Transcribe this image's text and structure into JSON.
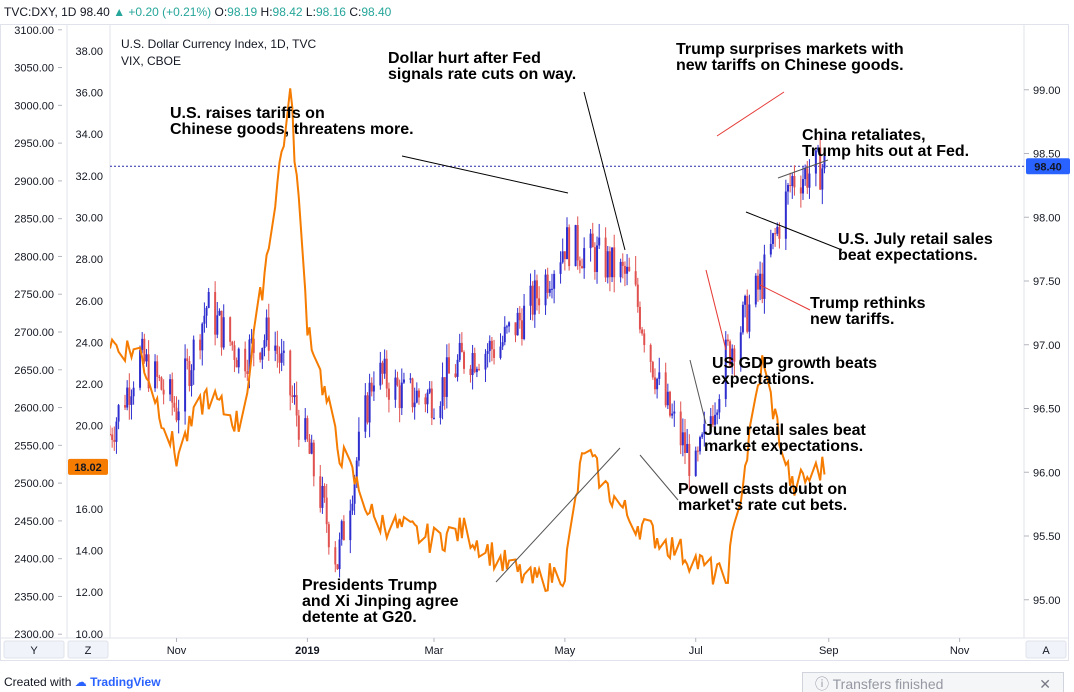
{
  "header": {
    "symbol": "TVC:DXY, 1D",
    "price": "98.40",
    "change": "+0.20 (+0.21%)",
    "open_label": "O:",
    "open": "98.19",
    "high_label": "H:",
    "high": "98.42",
    "low_label": "L:",
    "low": "98.16",
    "close_label": "C:",
    "close": "98.40"
  },
  "legend": {
    "line1": "U.S. Dollar Currency Index, 1D, TVC",
    "line2": "VIX, CBOE"
  },
  "buttons": {
    "y": "Y",
    "z": "Z",
    "a": "A"
  },
  "footer": {
    "created_with": "Created with",
    "brand": "TradingView"
  },
  "toast": {
    "text": "Transfers finished"
  },
  "colors": {
    "up": "#2e2ecf",
    "down": "#e0514f",
    "vix": "#f57c00",
    "last_price_bg": "#2962ff",
    "vix_label_bg": "#f57c00"
  },
  "chart_data": {
    "type": "line",
    "x_labels": [
      "Nov",
      "2019",
      "Mar",
      "May",
      "Jul",
      "Sep",
      "Nov"
    ],
    "x_range": [
      "2018-10-01",
      "2019-12-01"
    ],
    "left_axis": {
      "ylim": [
        2295,
        3105
      ],
      "ticks": [
        "3100.00",
        "3050.00",
        "3000.00",
        "2950.00",
        "2900.00",
        "2850.00",
        "2800.00",
        "2750.00",
        "2700.00",
        "2650.00",
        "2600.00",
        "2550.00",
        "2500.00",
        "2450.00",
        "2400.00",
        "2350.00",
        "2300.00"
      ]
    },
    "vix_axis": {
      "ylim": [
        9.8,
        39.2
      ],
      "ticks": [
        "38.00",
        "36.00",
        "34.00",
        "32.00",
        "30.00",
        "28.00",
        "26.00",
        "24.00",
        "22.00",
        "20.00",
        "18.00",
        "16.00",
        "14.00",
        "12.00",
        "10.00"
      ]
    },
    "right_axis": {
      "ylim": [
        94.7,
        99.5
      ],
      "ticks": [
        "99.00",
        "98.50",
        "98.00",
        "97.50",
        "97.00",
        "96.50",
        "96.00",
        "95.50",
        "95.00"
      ]
    },
    "last_price": {
      "value": 98.4,
      "label": "98.40"
    },
    "vix_last": {
      "value": 18.02,
      "label": "18.02"
    },
    "series": [
      {
        "name": "U.S. Dollar Currency Index",
        "kind": "candlestick",
        "x": [
          "2018-10-01",
          "2018-10-15",
          "2018-11-01",
          "2018-11-15",
          "2018-12-01",
          "2018-12-15",
          "2019-01-01",
          "2019-01-15",
          "2019-02-01",
          "2019-02-15",
          "2019-03-01",
          "2019-03-15",
          "2019-04-01",
          "2019-04-15",
          "2019-05-01",
          "2019-05-15",
          "2019-06-01",
          "2019-06-15",
          "2019-07-01",
          "2019-07-15",
          "2019-08-01",
          "2019-08-15",
          "2019-08-30"
        ],
        "values": [
          96.3,
          96.9,
          96.5,
          97.3,
          96.9,
          97.1,
          96.2,
          95.3,
          96.8,
          96.6,
          96.6,
          96.9,
          97.0,
          97.3,
          97.8,
          97.7,
          97.5,
          96.6,
          96.0,
          96.9,
          97.5,
          98.3,
          98.4
        ]
      },
      {
        "name": "VIX",
        "x": [
          "2018-10-01",
          "2018-10-15",
          "2018-11-01",
          "2018-11-15",
          "2018-12-01",
          "2018-12-10",
          "2018-12-24",
          "2019-01-01",
          "2019-01-15",
          "2019-02-01",
          "2019-02-15",
          "2019-03-01",
          "2019-03-15",
          "2019-04-01",
          "2019-04-15",
          "2019-05-01",
          "2019-05-10",
          "2019-05-20",
          "2019-06-01",
          "2019-06-15",
          "2019-07-01",
          "2019-07-15",
          "2019-08-01",
          "2019-08-15",
          "2019-08-30"
        ],
        "values": [
          24.0,
          23.5,
          18.5,
          21.5,
          20.0,
          26.0,
          36.0,
          25.0,
          19.0,
          15.5,
          15.0,
          14.5,
          15.0,
          13.5,
          12.5,
          13.0,
          19.0,
          17.0,
          15.5,
          14.5,
          13.5,
          12.5,
          23.0,
          17.0,
          18.02
        ]
      }
    ],
    "annotations": [
      "U.S. raises tariffs on\nChinese goods, threatens more.",
      "Dollar hurt after Fed\nsignals rate cuts on way.",
      "Trump surprises markets with\nnew tariffs on Chinese goods.",
      "China retaliates,\nTrump hits out at Fed.",
      "U.S. July retail sales\nbeat expectations.",
      "Trump rethinks\nnew tariffs.",
      "US GDP growth beats\nexpectations.",
      "June retail sales beat\nmarket expectations.",
      "Powell casts doubt on\nmarket's rate cut bets.",
      "Presidents Trump\nand Xi Jinping agree\ndetente at G20."
    ]
  }
}
